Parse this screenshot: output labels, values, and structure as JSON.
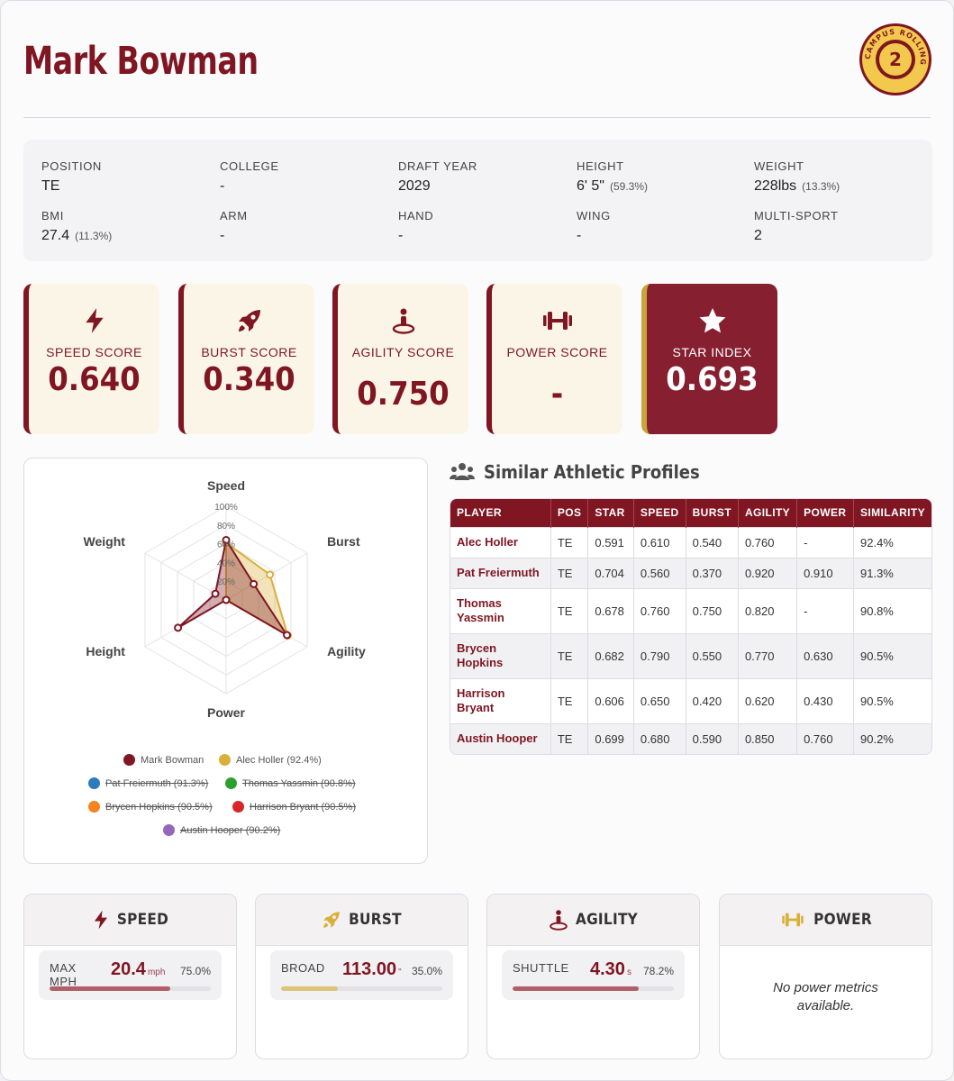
{
  "player": {
    "name": "Mark Bowman",
    "logo_text": "CAMPUS  ROLLING"
  },
  "info": [
    {
      "label": "POSITION",
      "value": "TE",
      "pct": ""
    },
    {
      "label": "COLLEGE",
      "value": "-",
      "pct": ""
    },
    {
      "label": "DRAFT YEAR",
      "value": "2029",
      "pct": ""
    },
    {
      "label": "HEIGHT",
      "value": "6' 5\"",
      "pct": "(59.3%)"
    },
    {
      "label": "WEIGHT",
      "value": "228lbs",
      "pct": "(13.3%)"
    },
    {
      "label": "BMI",
      "value": "27.4",
      "pct": "(11.3%)"
    },
    {
      "label": "ARM",
      "value": "-",
      "pct": ""
    },
    {
      "label": "HAND",
      "value": "-",
      "pct": ""
    },
    {
      "label": "WING",
      "value": "-",
      "pct": ""
    },
    {
      "label": "MULTI-SPORT",
      "value": "2",
      "pct": ""
    }
  ],
  "scores": [
    {
      "label": "SPEED SCORE",
      "value": "0.640",
      "icon": "lightning-icon"
    },
    {
      "label": "BURST SCORE",
      "value": "0.340",
      "icon": "rocket-icon"
    },
    {
      "label": "AGILITY SCORE",
      "value": "0.750",
      "icon": "agility-person-icon"
    },
    {
      "label": "POWER SCORE",
      "value": "-",
      "icon": "dumbbell-icon"
    },
    {
      "label": "STAR INDEX",
      "value": "0.693",
      "icon": "star-icon"
    }
  ],
  "colors": {
    "primary": "#7f1622",
    "gold": "#d9b03a",
    "cream": "#fbf5e8"
  },
  "chart_data": {
    "type": "radar",
    "axes": [
      "Speed",
      "Burst",
      "Agility",
      "Power",
      "Height",
      "Weight"
    ],
    "tick_labels": [
      "20%",
      "40%",
      "60%",
      "80%",
      "100%"
    ],
    "range": [
      0,
      100
    ],
    "series": [
      {
        "name": "Mark Bowman",
        "values": [
          64,
          34,
          75,
          0,
          59.3,
          13.3
        ],
        "color": "#7f1622",
        "visible": true
      },
      {
        "name": "Alec Holler (92.4%)",
        "values": [
          61,
          54,
          76,
          0,
          0,
          0
        ],
        "color": "#d9b03a",
        "visible": true
      },
      {
        "name": "Pat Freiermuth (91.3%)",
        "color": "#2b7bbd",
        "visible": false
      },
      {
        "name": "Thomas Yassmin (90.8%)",
        "color": "#2ca02c",
        "visible": false
      },
      {
        "name": "Brycen Hopkins (90.5%)",
        "color": "#f5831f",
        "visible": false
      },
      {
        "name": "Harrison Bryant (90.5%)",
        "color": "#d62728",
        "visible": false
      },
      {
        "name": "Austin Hooper (90.2%)",
        "color": "#9467bd",
        "visible": false
      }
    ]
  },
  "similar": {
    "title": "Similar Athletic Profiles",
    "columns": [
      "PLAYER",
      "POS",
      "STAR",
      "SPEED",
      "BURST",
      "AGILITY",
      "POWER",
      "SIMILARITY"
    ],
    "rows": [
      [
        "Alec Holler",
        "TE",
        "0.591",
        "0.610",
        "0.540",
        "0.760",
        "-",
        "92.4%"
      ],
      [
        "Pat Freiermuth",
        "TE",
        "0.704",
        "0.560",
        "0.370",
        "0.920",
        "0.910",
        "91.3%"
      ],
      [
        "Thomas Yassmin",
        "TE",
        "0.678",
        "0.760",
        "0.750",
        "0.820",
        "-",
        "90.8%"
      ],
      [
        "Brycen Hopkins",
        "TE",
        "0.682",
        "0.790",
        "0.550",
        "0.770",
        "0.630",
        "90.5%"
      ],
      [
        "Harrison Bryant",
        "TE",
        "0.606",
        "0.650",
        "0.420",
        "0.620",
        "0.430",
        "90.5%"
      ],
      [
        "Austin Hooper",
        "TE",
        "0.699",
        "0.680",
        "0.590",
        "0.850",
        "0.760",
        "90.2%"
      ]
    ]
  },
  "metrics": [
    {
      "title": "SPEED",
      "icon": "lightning-icon",
      "name": "MAX MPH",
      "value": "20.4",
      "unit": "mph",
      "pct": "75.0%",
      "fill": 0.75,
      "bar_color": "#b0606a"
    },
    {
      "title": "BURST",
      "icon": "rocket-icon",
      "name": "BROAD",
      "value": "113.00",
      "unit": "\"",
      "pct": "35.0%",
      "fill": 0.35,
      "bar_color": "#dcc47a"
    },
    {
      "title": "AGILITY",
      "icon": "agility-person-icon",
      "name": "SHUTTLE",
      "value": "4.30",
      "unit": "s",
      "pct": "78.2%",
      "fill": 0.782,
      "bar_color": "#b0606a"
    },
    {
      "title": "POWER",
      "icon": "dumbbell-icon",
      "empty_text": "No power metrics available."
    }
  ]
}
